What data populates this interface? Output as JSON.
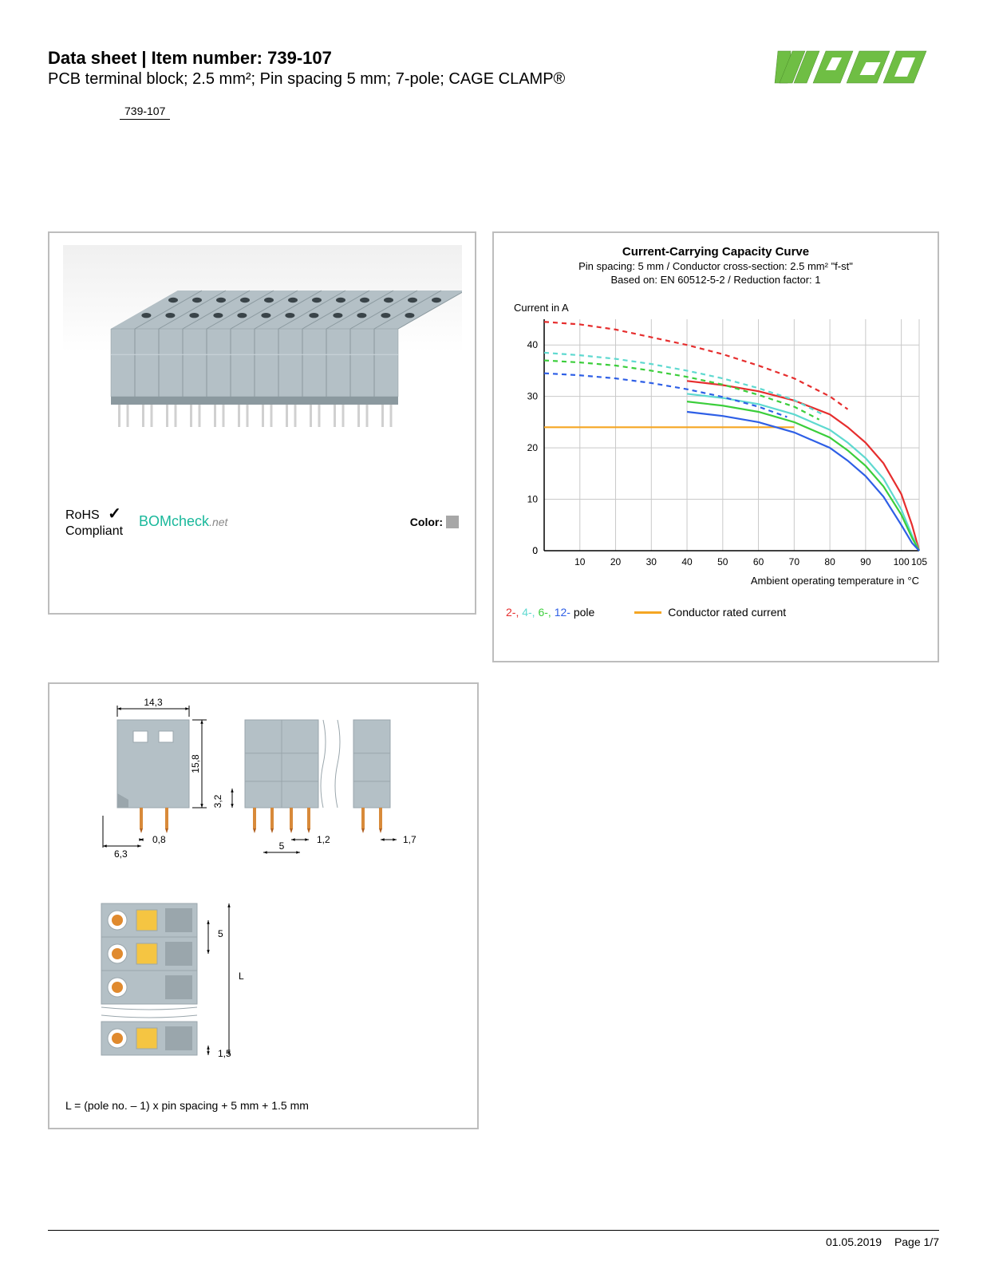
{
  "header": {
    "title_prefix": "Data sheet  |  Item number: ",
    "item_number": "739-107",
    "subtitle": "PCB terminal block; 2.5 mm²; Pin spacing 5 mm; 7-pole; CAGE CLAMP®",
    "item_chip": "739-107"
  },
  "brand": {
    "name": "WAGO",
    "color": "#6fbe44"
  },
  "compliance": {
    "rohs_line1": "RoHS",
    "rohs_line2": "Compliant",
    "check_symbol": "✓",
    "bomcheck_text": "BOMcheck",
    "bomcheck_suffix": ".net",
    "color_label": "Color:",
    "color_swatch": "#a7a7a7"
  },
  "product_render": {
    "body_color": "#b4c0c6",
    "body_shadow": "#8b999f",
    "pin_color": "#d0d0d0",
    "hole_color": "#3a4449",
    "pole_count_shown": 12
  },
  "chart": {
    "type": "line",
    "title": "Current-Carrying Capacity Curve",
    "subtitle1": "Pin spacing: 5 mm / Conductor cross-section: 2.5 mm² \"f-st\"",
    "subtitle2": "Based on: EN 60512-5-2 / Reduction factor: 1",
    "y_label": "Current in A",
    "x_label": "Ambient operating temperature in °C",
    "x_min": 0,
    "x_max": 105,
    "y_min": 0,
    "y_max": 45,
    "x_ticks": [
      0,
      10,
      20,
      30,
      40,
      50,
      60,
      70,
      80,
      90,
      100,
      105
    ],
    "y_ticks": [
      0,
      10,
      20,
      30,
      40
    ],
    "grid_color": "#c9c9c9",
    "axis_color": "#000000",
    "background": "#ffffff",
    "label_fontsize": 13,
    "tick_fontsize": 12,
    "line_width_solid": 2.2,
    "line_width_dash": 2.2,
    "dash_pattern": "6 5",
    "conductor_rated": {
      "value": 24,
      "x_from": 0,
      "x_to": 70,
      "color": "#f5a623"
    },
    "series": [
      {
        "name": "2-pole",
        "color": "#e62e2e",
        "solid": [
          [
            40,
            33
          ],
          [
            50,
            32.2
          ],
          [
            60,
            31
          ],
          [
            70,
            29.2
          ],
          [
            80,
            26.5
          ],
          [
            85,
            24
          ],
          [
            90,
            21
          ],
          [
            95,
            17
          ],
          [
            100,
            11
          ],
          [
            103,
            5
          ],
          [
            105,
            0
          ]
        ],
        "dashed": [
          [
            0,
            44.5
          ],
          [
            10,
            44
          ],
          [
            20,
            43
          ],
          [
            30,
            41.5
          ],
          [
            40,
            40
          ],
          [
            50,
            38.2
          ],
          [
            60,
            36
          ],
          [
            70,
            33.5
          ],
          [
            80,
            30
          ],
          [
            85,
            27.5
          ]
        ]
      },
      {
        "name": "4-pole",
        "color": "#5fd9d0",
        "solid": [
          [
            40,
            30.5
          ],
          [
            50,
            29.7
          ],
          [
            60,
            28.5
          ],
          [
            70,
            26.5
          ],
          [
            80,
            23.5
          ],
          [
            85,
            21
          ],
          [
            90,
            18
          ],
          [
            95,
            14
          ],
          [
            100,
            8
          ],
          [
            103,
            3
          ],
          [
            105,
            0
          ]
        ],
        "dashed": [
          [
            0,
            38.5
          ],
          [
            10,
            38
          ],
          [
            20,
            37.3
          ],
          [
            30,
            36.3
          ],
          [
            40,
            35
          ],
          [
            50,
            33.5
          ],
          [
            60,
            31.6
          ],
          [
            70,
            29.3
          ],
          [
            78,
            26.5
          ]
        ]
      },
      {
        "name": "6-pole",
        "color": "#3bce3b",
        "solid": [
          [
            40,
            29
          ],
          [
            50,
            28.2
          ],
          [
            60,
            27
          ],
          [
            70,
            25
          ],
          [
            80,
            22
          ],
          [
            85,
            19.5
          ],
          [
            90,
            16.5
          ],
          [
            95,
            12.5
          ],
          [
            100,
            7
          ],
          [
            103,
            2.5
          ],
          [
            105,
            0
          ]
        ],
        "dashed": [
          [
            0,
            37
          ],
          [
            10,
            36.6
          ],
          [
            20,
            36
          ],
          [
            30,
            35
          ],
          [
            40,
            33.8
          ],
          [
            50,
            32.3
          ],
          [
            60,
            30.3
          ],
          [
            70,
            28
          ],
          [
            77,
            25.5
          ]
        ]
      },
      {
        "name": "12-pole",
        "color": "#2e5fe6",
        "solid": [
          [
            40,
            27
          ],
          [
            50,
            26.2
          ],
          [
            60,
            25
          ],
          [
            70,
            23
          ],
          [
            80,
            20
          ],
          [
            85,
            17.5
          ],
          [
            90,
            14.5
          ],
          [
            95,
            10.5
          ],
          [
            100,
            5
          ],
          [
            103,
            1.5
          ],
          [
            105,
            0
          ]
        ],
        "dashed": [
          [
            0,
            34.5
          ],
          [
            10,
            34.1
          ],
          [
            20,
            33.5
          ],
          [
            30,
            32.6
          ],
          [
            40,
            31.4
          ],
          [
            50,
            29.9
          ],
          [
            60,
            28
          ],
          [
            68,
            26
          ]
        ]
      }
    ],
    "legend": {
      "poles": [
        {
          "label": "2-",
          "color": "#e62e2e"
        },
        {
          "label": "4-",
          "color": "#5fd9d0"
        },
        {
          "label": "6-",
          "color": "#3bce3b"
        },
        {
          "label": "12-",
          "color": "#2e5fe6"
        }
      ],
      "poles_suffix": " pole",
      "conductor_label": "Conductor rated current"
    }
  },
  "dimensions": {
    "formula": "L = (pole no. – 1) x pin spacing + 5 mm + 1.5 mm",
    "body_color": "#b4c0c6",
    "body_dark": "#9aa6ac",
    "pin_color": "#d88a3a",
    "pin_tip": "#b06020",
    "dim_color": "#000000",
    "accent_yellow": "#f5c542",
    "accent_orange": "#e08a2e",
    "values": {
      "width_top": "14,3",
      "height_side": "15,8",
      "pin_width": "0,8",
      "edge_left": "6,3",
      "front_gap": "3,2",
      "front_pin_gap": "1,2",
      "front_pitch": "5",
      "front_edge_right": "1,7",
      "top_pitch": "5",
      "top_edge": "1,5",
      "length_var": "L"
    }
  },
  "footer": {
    "date": "01.05.2019",
    "page": "Page 1/7"
  }
}
